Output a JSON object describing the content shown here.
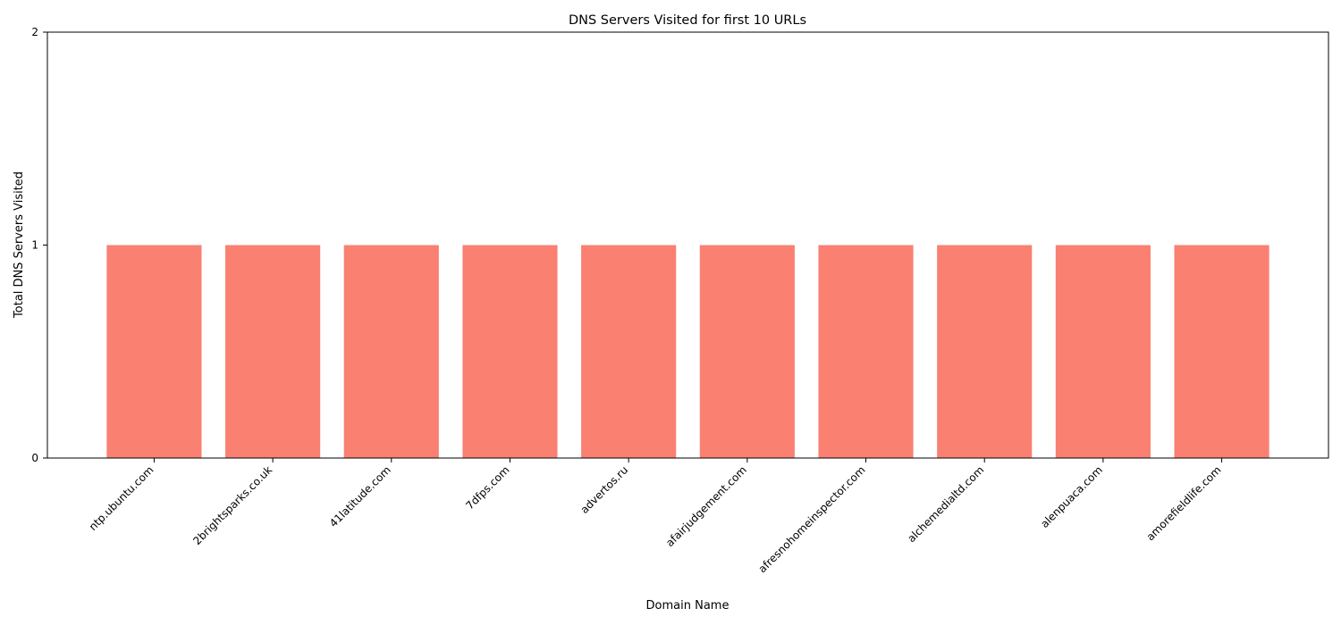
{
  "chart_data": {
    "type": "bar",
    "title": "DNS Servers Visited for first 10 URLs",
    "xlabel": "Domain Name",
    "ylabel": "Total DNS Servers Visited",
    "categories": [
      "ntp.ubuntu.com",
      "2brightsparks.co.uk",
      "41latitude.com",
      "7dfps.com",
      "advertos.ru",
      "afairjudgement.com",
      "afresnohomeinspector.com",
      "alchemedialtd.com",
      "alenpuaca.com",
      "amorefieldlife.com"
    ],
    "values": [
      1,
      1,
      1,
      1,
      1,
      1,
      1,
      1,
      1,
      1
    ],
    "ylim": [
      0,
      2
    ],
    "yticks": [
      "0",
      "1",
      "2"
    ],
    "bar_color": "#fa8072",
    "grid": false,
    "legend": "none"
  }
}
